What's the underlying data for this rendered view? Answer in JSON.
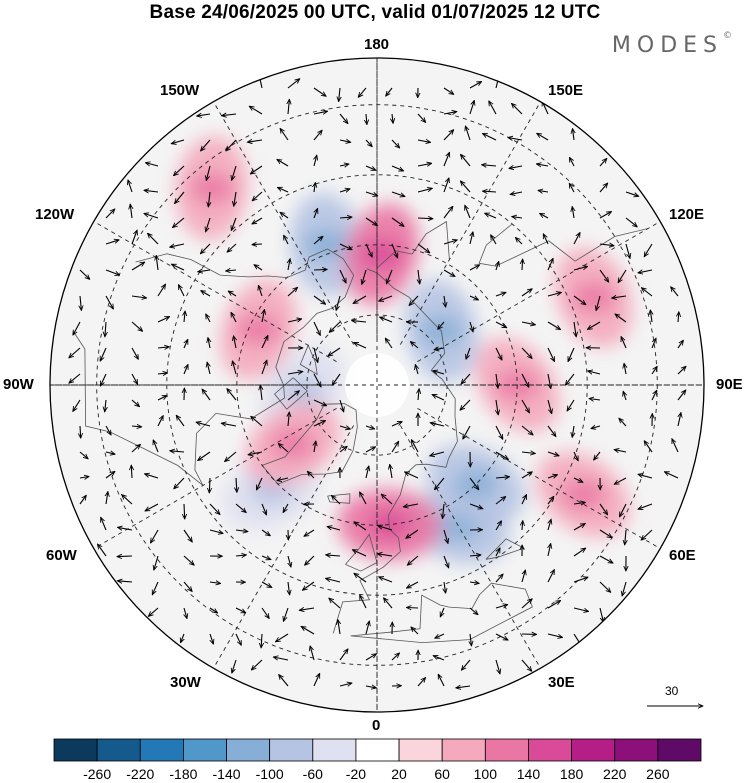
{
  "title": "Base 24/06/2025 00 UTC, valid 01/07/2025 12 UTC",
  "logo": "MODES",
  "logo_mark": "©",
  "meridian_labels": {
    "top": "180",
    "bottom": "0",
    "left": "90W",
    "right": "90E",
    "upper_left_1": "150W",
    "upper_left_2": "120W",
    "lower_left_1": "60W",
    "lower_left_2": "30W",
    "upper_right_1": "150E",
    "upper_right_2": "120E",
    "lower_right_1": "60E",
    "lower_right_2": "30E"
  },
  "reference_vector": "30",
  "colorbar": {
    "labels": [
      "-260",
      "-220",
      "-180",
      "-140",
      "-100",
      "-60",
      "-20",
      "20",
      "60",
      "100",
      "140",
      "180",
      "220",
      "260"
    ],
    "colors": [
      "#0b3a5c",
      "#145a8c",
      "#2379b5",
      "#4f98c9",
      "#86aed6",
      "#b6c4e3",
      "#dfe0f0",
      "#ffffff",
      "#fad6dc",
      "#f4a9bd",
      "#ea76a3",
      "#d94a98",
      "#b51e86",
      "#8c0f7a",
      "#5e0a66"
    ]
  },
  "map": {
    "anomaly_features": [
      {
        "sign": "negative",
        "lon": -160,
        "lat": 58,
        "value": -100
      },
      {
        "sign": "negative",
        "lon": 130,
        "lat": 72,
        "value": -100
      },
      {
        "sign": "negative",
        "lon": -85,
        "lat": 74,
        "value": -60
      },
      {
        "sign": "negative",
        "lon": -45,
        "lat": 58,
        "value": -60
      },
      {
        "sign": "negative",
        "lon": 30,
        "lat": 55,
        "value": -100
      },
      {
        "sign": "negative",
        "lon": 45,
        "lat": 60,
        "value": -100
      },
      {
        "sign": "positive",
        "lon": 5,
        "lat": 60,
        "value": 100
      },
      {
        "sign": "positive",
        "lon": 178,
        "lat": 62,
        "value": 100
      },
      {
        "sign": "positive",
        "lon": -115,
        "lat": 62,
        "value": 60
      },
      {
        "sign": "positive",
        "lon": 90,
        "lat": 60,
        "value": 60
      },
      {
        "sign": "positive",
        "lon": 62,
        "lat": 40,
        "value": 60
      },
      {
        "sign": "positive",
        "lon": -140,
        "lat": 35,
        "value": 60
      },
      {
        "sign": "positive",
        "lon": 112,
        "lat": 40,
        "value": 60
      },
      {
        "sign": "positive",
        "lon": -55,
        "lat": 68,
        "value": 60
      }
    ]
  }
}
